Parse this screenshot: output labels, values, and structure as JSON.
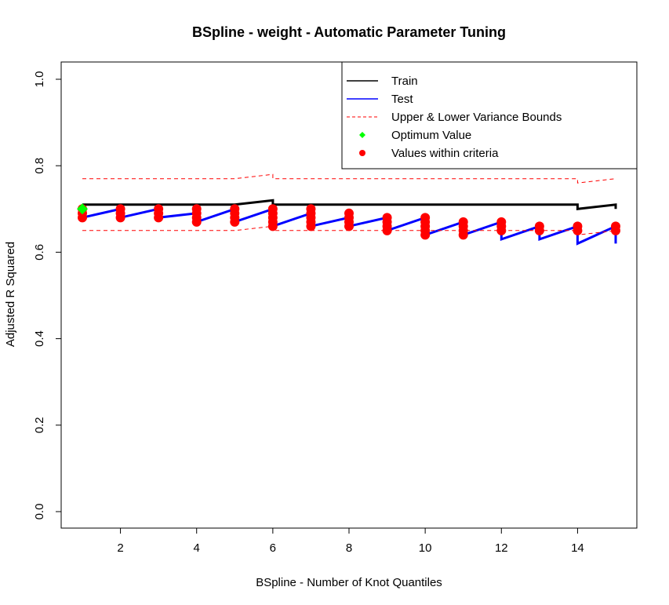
{
  "chart_data": {
    "type": "line",
    "title": "BSpline - weight - Automatic Parameter Tuning",
    "xlabel": "BSpline - Number of Knot Quantiles",
    "ylabel": "Adjusted R Squared",
    "xlim": [
      1,
      15
    ],
    "ylim": [
      0,
      1
    ],
    "x_ticks": [
      2,
      4,
      6,
      8,
      10,
      12,
      14
    ],
    "x_tick_labels": [
      "2",
      "4",
      "6",
      "8",
      "10",
      "12",
      "14"
    ],
    "y_ticks": [
      0.0,
      0.2,
      0.4,
      0.6,
      0.8,
      1.0
    ],
    "y_tick_labels": [
      "0.0",
      "0.2",
      "0.4",
      "0.6",
      "0.8",
      "1.0"
    ],
    "legend_position": "top-right",
    "grid": false,
    "legend": [
      {
        "label": "Train",
        "kind": "line",
        "color": "#000000"
      },
      {
        "label": "Test",
        "kind": "line",
        "color": "#0000ff"
      },
      {
        "label": "Upper & Lower Variance Bounds",
        "kind": "dashed",
        "color": "#ff0000"
      },
      {
        "label": "Optimum Value",
        "kind": "point",
        "color": "#00ff00"
      },
      {
        "label": "Values within criteria",
        "kind": "point",
        "color": "#ff0000"
      }
    ],
    "series": [
      {
        "name": "Train",
        "color": "#000000",
        "points": [
          [
            1,
            0.71
          ],
          [
            5,
            0.71
          ],
          [
            6,
            0.72
          ],
          [
            6,
            0.71
          ],
          [
            14,
            0.71
          ],
          [
            14,
            0.7
          ],
          [
            15,
            0.71
          ],
          [
            15,
            0.7
          ]
        ]
      },
      {
        "name": "Test",
        "color": "#0000ff",
        "points": [
          [
            1,
            0.68
          ],
          [
            2,
            0.7
          ],
          [
            2,
            0.68
          ],
          [
            3,
            0.7
          ],
          [
            3,
            0.68
          ],
          [
            4,
            0.69
          ],
          [
            4,
            0.67
          ],
          [
            5,
            0.7
          ],
          [
            5,
            0.67
          ],
          [
            6,
            0.7
          ],
          [
            6,
            0.66
          ],
          [
            7,
            0.69
          ],
          [
            7,
            0.66
          ],
          [
            8,
            0.68
          ],
          [
            8,
            0.66
          ],
          [
            9,
            0.68
          ],
          [
            9,
            0.65
          ],
          [
            10,
            0.68
          ],
          [
            10,
            0.64
          ],
          [
            11,
            0.67
          ],
          [
            11,
            0.64
          ],
          [
            12,
            0.67
          ],
          [
            12,
            0.63
          ],
          [
            13,
            0.66
          ],
          [
            13,
            0.63
          ],
          [
            14,
            0.66
          ],
          [
            14,
            0.62
          ],
          [
            15,
            0.66
          ],
          [
            15,
            0.62
          ]
        ]
      },
      {
        "name": "Upper Variance Bound",
        "color": "#ff0000",
        "points": [
          [
            1,
            0.77
          ],
          [
            5,
            0.77
          ],
          [
            6,
            0.78
          ],
          [
            6,
            0.77
          ],
          [
            14,
            0.77
          ],
          [
            14,
            0.76
          ],
          [
            15,
            0.77
          ]
        ]
      },
      {
        "name": "Lower Variance Bound",
        "color": "#ff0000",
        "points": [
          [
            1,
            0.65
          ],
          [
            5,
            0.65
          ],
          [
            6,
            0.66
          ],
          [
            6,
            0.65
          ],
          [
            12,
            0.65
          ],
          [
            14,
            0.65
          ],
          [
            14,
            0.64
          ],
          [
            15,
            0.65
          ]
        ]
      }
    ],
    "optimum": {
      "x": 1,
      "y": 0.7,
      "color": "#00ff00"
    },
    "criteria_points": {
      "color": "#ff0000",
      "points": [
        [
          1,
          0.68
        ],
        [
          1,
          0.69
        ],
        [
          1,
          0.7
        ],
        [
          2,
          0.68
        ],
        [
          2,
          0.69
        ],
        [
          2,
          0.7
        ],
        [
          3,
          0.68
        ],
        [
          3,
          0.69
        ],
        [
          3,
          0.7
        ],
        [
          4,
          0.67
        ],
        [
          4,
          0.68
        ],
        [
          4,
          0.69
        ],
        [
          4,
          0.7
        ],
        [
          5,
          0.67
        ],
        [
          5,
          0.68
        ],
        [
          5,
          0.69
        ],
        [
          5,
          0.7
        ],
        [
          6,
          0.66
        ],
        [
          6,
          0.67
        ],
        [
          6,
          0.68
        ],
        [
          6,
          0.69
        ],
        [
          6,
          0.7
        ],
        [
          7,
          0.66
        ],
        [
          7,
          0.67
        ],
        [
          7,
          0.68
        ],
        [
          7,
          0.69
        ],
        [
          7,
          0.7
        ],
        [
          8,
          0.66
        ],
        [
          8,
          0.67
        ],
        [
          8,
          0.68
        ],
        [
          8,
          0.69
        ],
        [
          9,
          0.65
        ],
        [
          9,
          0.66
        ],
        [
          9,
          0.67
        ],
        [
          9,
          0.68
        ],
        [
          10,
          0.64
        ],
        [
          10,
          0.65
        ],
        [
          10,
          0.66
        ],
        [
          10,
          0.67
        ],
        [
          10,
          0.68
        ],
        [
          11,
          0.64
        ],
        [
          11,
          0.65
        ],
        [
          11,
          0.66
        ],
        [
          11,
          0.67
        ],
        [
          12,
          0.65
        ],
        [
          12,
          0.66
        ],
        [
          12,
          0.67
        ],
        [
          13,
          0.65
        ],
        [
          13,
          0.66
        ],
        [
          14,
          0.65
        ],
        [
          14,
          0.66
        ],
        [
          15,
          0.65
        ],
        [
          15,
          0.66
        ]
      ]
    }
  }
}
